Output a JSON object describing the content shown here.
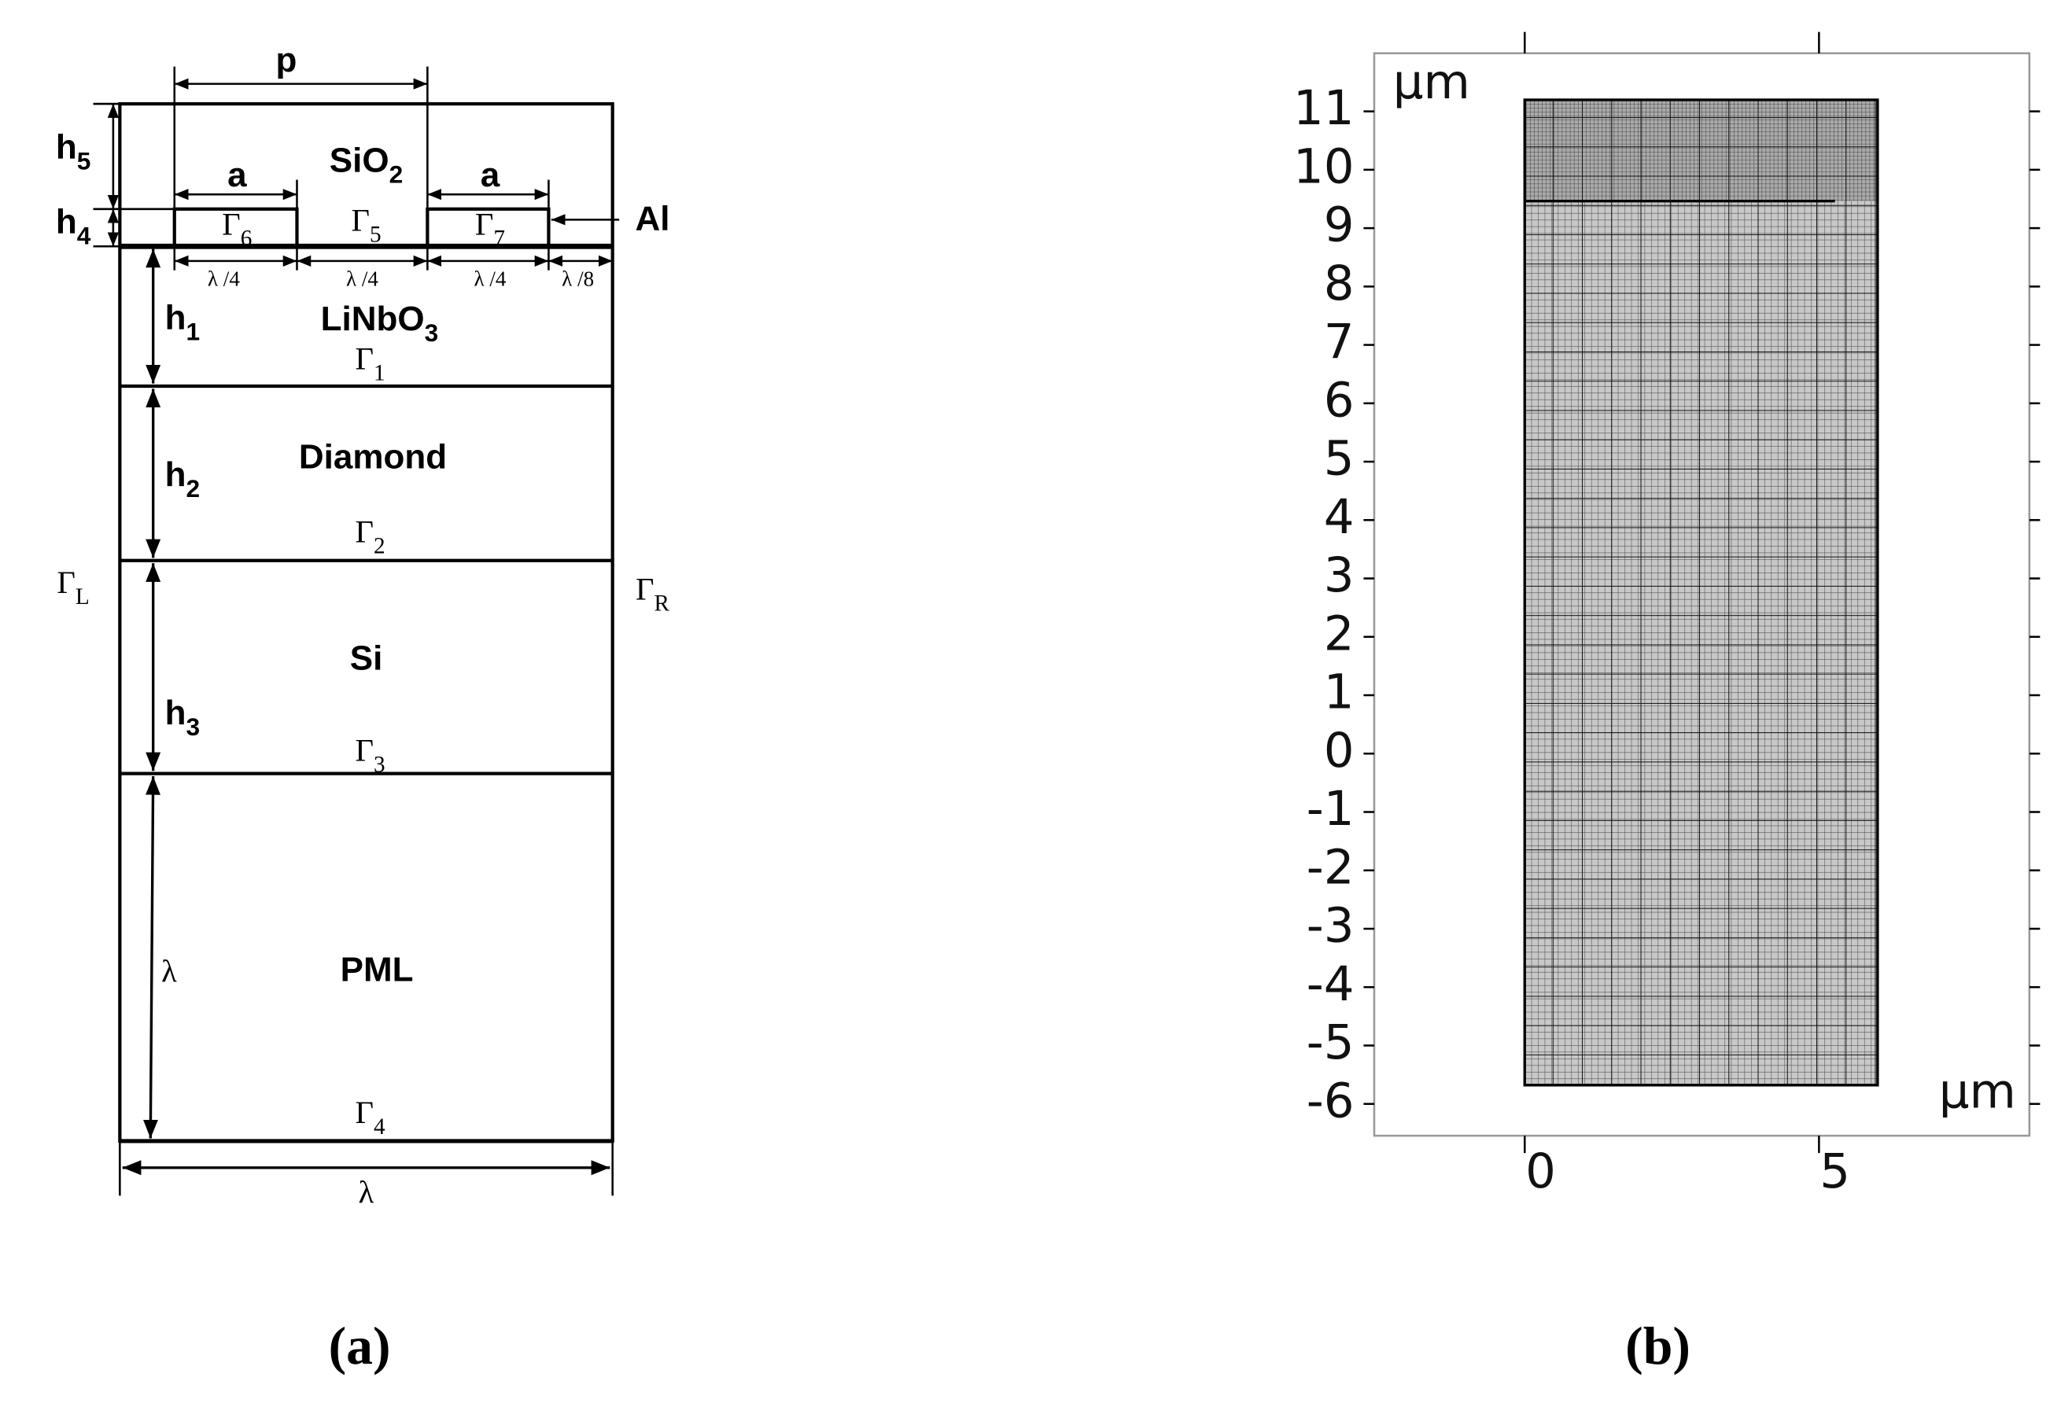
{
  "panel_a": {
    "p": "p",
    "a_left": "a",
    "a_right": "a",
    "sio2": {
      "text": "SiO",
      "sub": "2"
    },
    "h5": {
      "text": "h",
      "sub": "5"
    },
    "h4": {
      "text": "h",
      "sub": "4"
    },
    "gamma6": {
      "text": "Γ",
      "sub": "6"
    },
    "gamma5": {
      "text": "Γ",
      "sub": "5"
    },
    "gamma7": {
      "text": "Γ",
      "sub": "7"
    },
    "al": "Al",
    "quarter_1": "λ /4",
    "quarter_2": "λ /4",
    "quarter_3": "λ /4",
    "eighth": "λ /8",
    "h1": {
      "text": "h",
      "sub": "1"
    },
    "linbo3": {
      "text": "LiNbO",
      "sub": "3"
    },
    "gamma1": {
      "text": "Γ",
      "sub": "1"
    },
    "diamond": "Diamond",
    "h2": {
      "text": "h",
      "sub": "2"
    },
    "gamma2": {
      "text": "Γ",
      "sub": "2"
    },
    "gamma_l": {
      "text": "Γ",
      "sub": "L"
    },
    "gamma_r": {
      "text": "Γ",
      "sub": "R"
    },
    "si": "Si",
    "h3": {
      "text": "h",
      "sub": "3"
    },
    "gamma3": {
      "text": "Γ",
      "sub": "3"
    },
    "lambda_side": "λ",
    "pml": "PML",
    "gamma4": {
      "text": "Γ",
      "sub": "4"
    },
    "lambda_bottom": "λ",
    "caption": "(a)"
  },
  "panel_b": {
    "y_unit": "μm",
    "x_unit": "μm",
    "yticks": [
      11,
      10,
      9,
      8,
      7,
      6,
      5,
      4,
      3,
      2,
      1,
      0,
      -1,
      -2,
      -3,
      -4,
      -5,
      -6
    ],
    "xticks": [
      0,
      5
    ],
    "caption": "(b)"
  }
}
